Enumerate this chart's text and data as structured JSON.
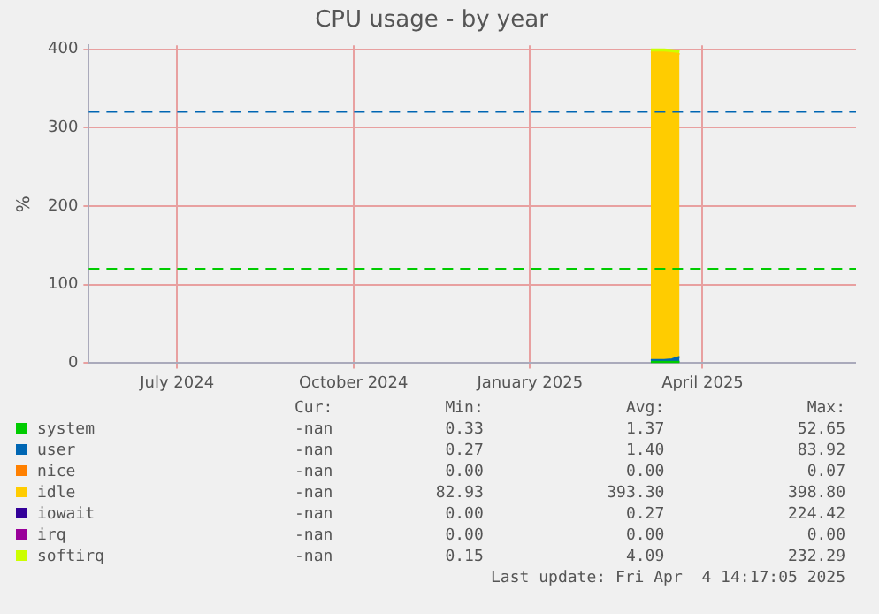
{
  "chart_data": {
    "type": "area",
    "title": "CPU usage - by year",
    "ylabel": "%",
    "stacked": true,
    "grid": true,
    "legend": "bottom",
    "marker": "none",
    "x": [
      "2025-03-19",
      "2025-03-22",
      "2025-03-26",
      "2025-03-30",
      "2025-04-03"
    ],
    "xlim": [
      "2024-05-30",
      "2025-07-04"
    ],
    "xticks": [
      {
        "value": "2024-07-15",
        "label": "July 2024"
      },
      {
        "value": "2024-10-15",
        "label": "October 2024"
      },
      {
        "value": "2025-01-15",
        "label": "January 2025"
      },
      {
        "value": "2025-04-15",
        "label": "April 2025"
      }
    ],
    "ylim": [
      0,
      405
    ],
    "yticks": [
      0,
      100,
      200,
      300,
      400
    ],
    "series": [
      {
        "name": "system",
        "color": "#00cc00",
        "values": [
          2,
          2,
          2,
          2,
          2
        ]
      },
      {
        "name": "user",
        "color": "#0066b3",
        "values": [
          2,
          2,
          2,
          3,
          6
        ]
      },
      {
        "name": "nice",
        "color": "#ff8000",
        "values": [
          null,
          null,
          null,
          null,
          null
        ]
      },
      {
        "name": "idle",
        "color": "#ffcc00",
        "values": [
          392,
          392,
          392,
          390,
          386
        ]
      },
      {
        "name": "iowait",
        "color": "#330099",
        "values": [
          null,
          null,
          null,
          null,
          null
        ]
      },
      {
        "name": "irq",
        "color": "#990099",
        "values": [
          null,
          null,
          null,
          null,
          null
        ]
      },
      {
        "name": "softirq",
        "color": "#ccff00",
        "values": [
          4,
          4,
          4,
          4,
          4
        ]
      }
    ],
    "ref_lines": [
      {
        "axis": "y",
        "value": 320,
        "color": "#0066b3",
        "line_style": "dashed"
      },
      {
        "axis": "y",
        "value": 120,
        "color": "#00cc00",
        "line_style": "dashed"
      }
    ],
    "annotations": [
      "Cur:",
      "Min:",
      "Avg:",
      "Max:",
      "-nan",
      "0.33",
      "1.37",
      "52.65",
      "-nan",
      "0.27",
      "1.40",
      "83.92",
      "-nan",
      "0.00",
      "0.00",
      "0.07",
      "-nan",
      "82.93",
      "393.30",
      "398.80",
      "-nan",
      "0.00",
      "0.27",
      "224.42",
      "-nan",
      "0.00",
      "0.00",
      "0.00",
      "-nan",
      "0.15",
      "4.09",
      "232.29",
      "Last update: Fri Apr  4 14:17:05 2025"
    ]
  }
}
